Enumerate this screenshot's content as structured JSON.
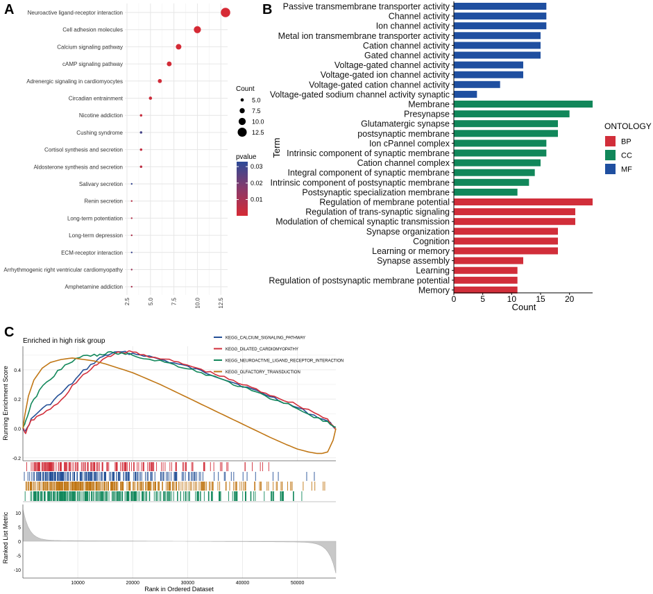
{
  "panel_labels": [
    "A",
    "B",
    "C"
  ],
  "chart_data": [
    {
      "id": "A",
      "type": "scatter",
      "title": "",
      "xlabel": "",
      "ylabel": "",
      "xlim": [
        2.5,
        13.0
      ],
      "xticks": [
        2.5,
        5.0,
        7.5,
        10.0,
        12.5
      ],
      "xtick_labels": [
        "2.5",
        "5.0",
        "7.5",
        "10.0",
        "12.5"
      ],
      "categories": [
        "Neuroactive ligand-receptor interaction",
        "Cell adhesion molecules",
        "Calcium signaling pathway",
        "cAMP signaling pathway",
        "Adrenergic signaling in cardiomyocytes",
        "Circadian entrainment",
        "Nicotine addiction",
        "Cushing syndrome",
        "Cortisol synthesis and secretion",
        "Aldosterone synthesis and secretion",
        "Salivary secretion",
        "Renin secretion",
        "Long-term potentiation",
        "Long-term depression",
        "ECM-receptor interaction",
        "Arrhythmogenic right ventricular cardiomyopathy",
        "Amphetamine addiction"
      ],
      "count": [
        13,
        10,
        8,
        7,
        6,
        5,
        4,
        4,
        4,
        4,
        3,
        3,
        3,
        3,
        3,
        3,
        3
      ],
      "pvalue": [
        0.0001,
        0.0002,
        0.0005,
        0.0008,
        0.001,
        0.002,
        0.003,
        0.028,
        0.004,
        0.005,
        0.031,
        0.006,
        0.007,
        0.008,
        0.03,
        0.012,
        0.009
      ],
      "size_legend": {
        "title": "Count",
        "labels": [
          "5.0",
          "7.5",
          "10.0",
          "12.5"
        ],
        "values": [
          5.0,
          7.5,
          10.0,
          12.5
        ]
      },
      "color_legend": {
        "title": "pvalue",
        "labels": [
          "0.03",
          "0.02",
          "0.01"
        ],
        "values": [
          0.03,
          0.02,
          0.01
        ],
        "range": [
          0.0001,
          0.033
        ],
        "low_color": "#d62a35",
        "high_color": "#2c4a97"
      }
    },
    {
      "id": "B",
      "type": "bar",
      "orientation": "horizontal",
      "xlabel": "Count",
      "ylabel": "Term",
      "xlim": [
        0,
        24
      ],
      "xticks": [
        0,
        5,
        10,
        15,
        20
      ],
      "xtick_labels": [
        "0",
        "5",
        "10",
        "15",
        "20"
      ],
      "categories": [
        "Passive transmembrane transporter activity",
        "Channel activity",
        "Ion channel activity",
        "Metal ion transmembrane transporter activity",
        "Cation channel activity",
        "Gated channel activity",
        "Voltage-gated channel activity",
        "Voltage-gated ion channel activity",
        "Voltage-gated cation channel activity",
        "Voltage-gated sodium channel activity synaptic",
        "Membrane",
        "Presynapse",
        "Glutamatergic synapse",
        "postsynaptic membrane",
        "Ion cPannel complex",
        "Intrinsic component of synaptic membrane",
        "Cation channel complex",
        "Integral component of synaptic membrane",
        "Intrinsic component of postsynaptic membrane",
        "Postsynaptic specialization membrane",
        "Regulation of membrane potential",
        "Regulation of trans-synaptic signaling",
        "Modulation of chemical synaptic transmission",
        "Synapse organization",
        "Cognition",
        "Learning or memory",
        "Synapse assembly",
        "Learning",
        "Regulation of postsynaptic membrane potential",
        "Memory"
      ],
      "values": [
        16,
        16,
        16,
        15,
        15,
        15,
        12,
        12,
        8,
        4,
        24,
        20,
        18,
        18,
        16,
        16,
        15,
        14,
        13,
        11,
        24,
        21,
        21,
        18,
        18,
        18,
        12,
        11,
        11,
        11
      ],
      "groups": [
        "MF",
        "MF",
        "MF",
        "MF",
        "MF",
        "MF",
        "MF",
        "MF",
        "MF",
        "MF",
        "CC",
        "CC",
        "CC",
        "CC",
        "CC",
        "CC",
        "CC",
        "CC",
        "CC",
        "CC",
        "BP",
        "BP",
        "BP",
        "BP",
        "BP",
        "BP",
        "BP",
        "BP",
        "BP",
        "BP"
      ],
      "legend": {
        "title": "ONTOLOGY",
        "entries": [
          {
            "label": "BP",
            "color": "#d12e3a"
          },
          {
            "label": "CC",
            "color": "#11875a"
          },
          {
            "label": "MF",
            "color": "#1f4fa0"
          }
        ]
      }
    },
    {
      "id": "C",
      "type": "line",
      "title": "Enriched in high risk group",
      "xlabel": "Rank in Ordered Dataset",
      "ylabel": "Running Enrichment Score",
      "ylabel_lower": "Ranked List Metric",
      "xlim": [
        0,
        57000
      ],
      "ylim": [
        -0.22,
        0.56
      ],
      "xticks": [
        10000,
        20000,
        30000,
        40000,
        50000
      ],
      "xtick_labels": [
        "10000",
        "20000",
        "30000",
        "40000",
        "50000"
      ],
      "yticks": [
        -0.2,
        0.0,
        0.2,
        0.4
      ],
      "ytick_labels": [
        "-0.2",
        "0.0",
        "0.2",
        "0.4"
      ],
      "metric_ylim": [
        -13,
        13
      ],
      "metric_yticks": [
        10,
        5,
        0,
        -5,
        -10
      ],
      "metric_ytick_labels": [
        "10",
        "5",
        "0",
        "-5",
        "-10"
      ],
      "series": [
        {
          "name": "KEGG_CALCIUM_SIGNALING_PATHWAY",
          "color": "#234f96",
          "x": [
            0,
            500,
            1500,
            3000,
            5000,
            7000,
            9000,
            11000,
            13000,
            14500,
            16000,
            18000,
            20000,
            22000,
            25000,
            30000,
            35000,
            40000,
            45000,
            50000,
            53000,
            55500,
            57000
          ],
          "y": [
            0,
            -0.02,
            0.06,
            0.12,
            0.17,
            0.24,
            0.31,
            0.39,
            0.45,
            0.49,
            0.51,
            0.52,
            0.51,
            0.5,
            0.47,
            0.42,
            0.36,
            0.29,
            0.22,
            0.14,
            0.09,
            0.05,
            0.0
          ]
        },
        {
          "name": "KEGG_DILATED_CARDIOMYOPATHY",
          "color": "#d12e3a",
          "x": [
            0,
            500,
            1500,
            3000,
            5000,
            7000,
            9000,
            11000,
            13000,
            14500,
            16000,
            18000,
            20000,
            22000,
            25000,
            30000,
            35000,
            40000,
            45000,
            50000,
            53000,
            55500,
            57000
          ],
          "y": [
            0,
            -0.03,
            0.05,
            0.09,
            0.13,
            0.19,
            0.29,
            0.36,
            0.42,
            0.47,
            0.5,
            0.52,
            0.52,
            0.5,
            0.48,
            0.43,
            0.37,
            0.3,
            0.23,
            0.16,
            0.11,
            0.06,
            0.0
          ]
        },
        {
          "name": "KEGG_NEUROACTIVE_LIGAND_RECEPTOR_INTERACTION",
          "color": "#11875a",
          "x": [
            0,
            500,
            1500,
            3000,
            5000,
            7000,
            9000,
            11000,
            13000,
            14500,
            16000,
            18000,
            20000,
            22000,
            25000,
            30000,
            35000,
            40000,
            45000,
            50000,
            53000,
            55500,
            57000
          ],
          "y": [
            0,
            0.05,
            0.16,
            0.26,
            0.34,
            0.41,
            0.46,
            0.49,
            0.5,
            0.5,
            0.52,
            0.51,
            0.5,
            0.48,
            0.46,
            0.41,
            0.35,
            0.28,
            0.21,
            0.14,
            0.08,
            0.04,
            0.0
          ]
        },
        {
          "name": "KEGG_OLFACTORY_TRANSDUCTION",
          "color": "#c07614",
          "x": [
            0,
            300,
            1000,
            2000,
            3500,
            5000,
            7000,
            9000,
            11000,
            13000,
            15000,
            20000,
            25000,
            30000,
            35000,
            40000,
            45000,
            48000,
            50000,
            52000,
            53500,
            54500,
            55500,
            56500,
            57000
          ],
          "y": [
            0,
            0.08,
            0.22,
            0.33,
            0.41,
            0.45,
            0.47,
            0.48,
            0.47,
            0.46,
            0.44,
            0.38,
            0.3,
            0.21,
            0.12,
            0.03,
            -0.06,
            -0.11,
            -0.14,
            -0.16,
            -0.17,
            -0.17,
            -0.16,
            -0.08,
            0.0
          ]
        }
      ]
    }
  ]
}
